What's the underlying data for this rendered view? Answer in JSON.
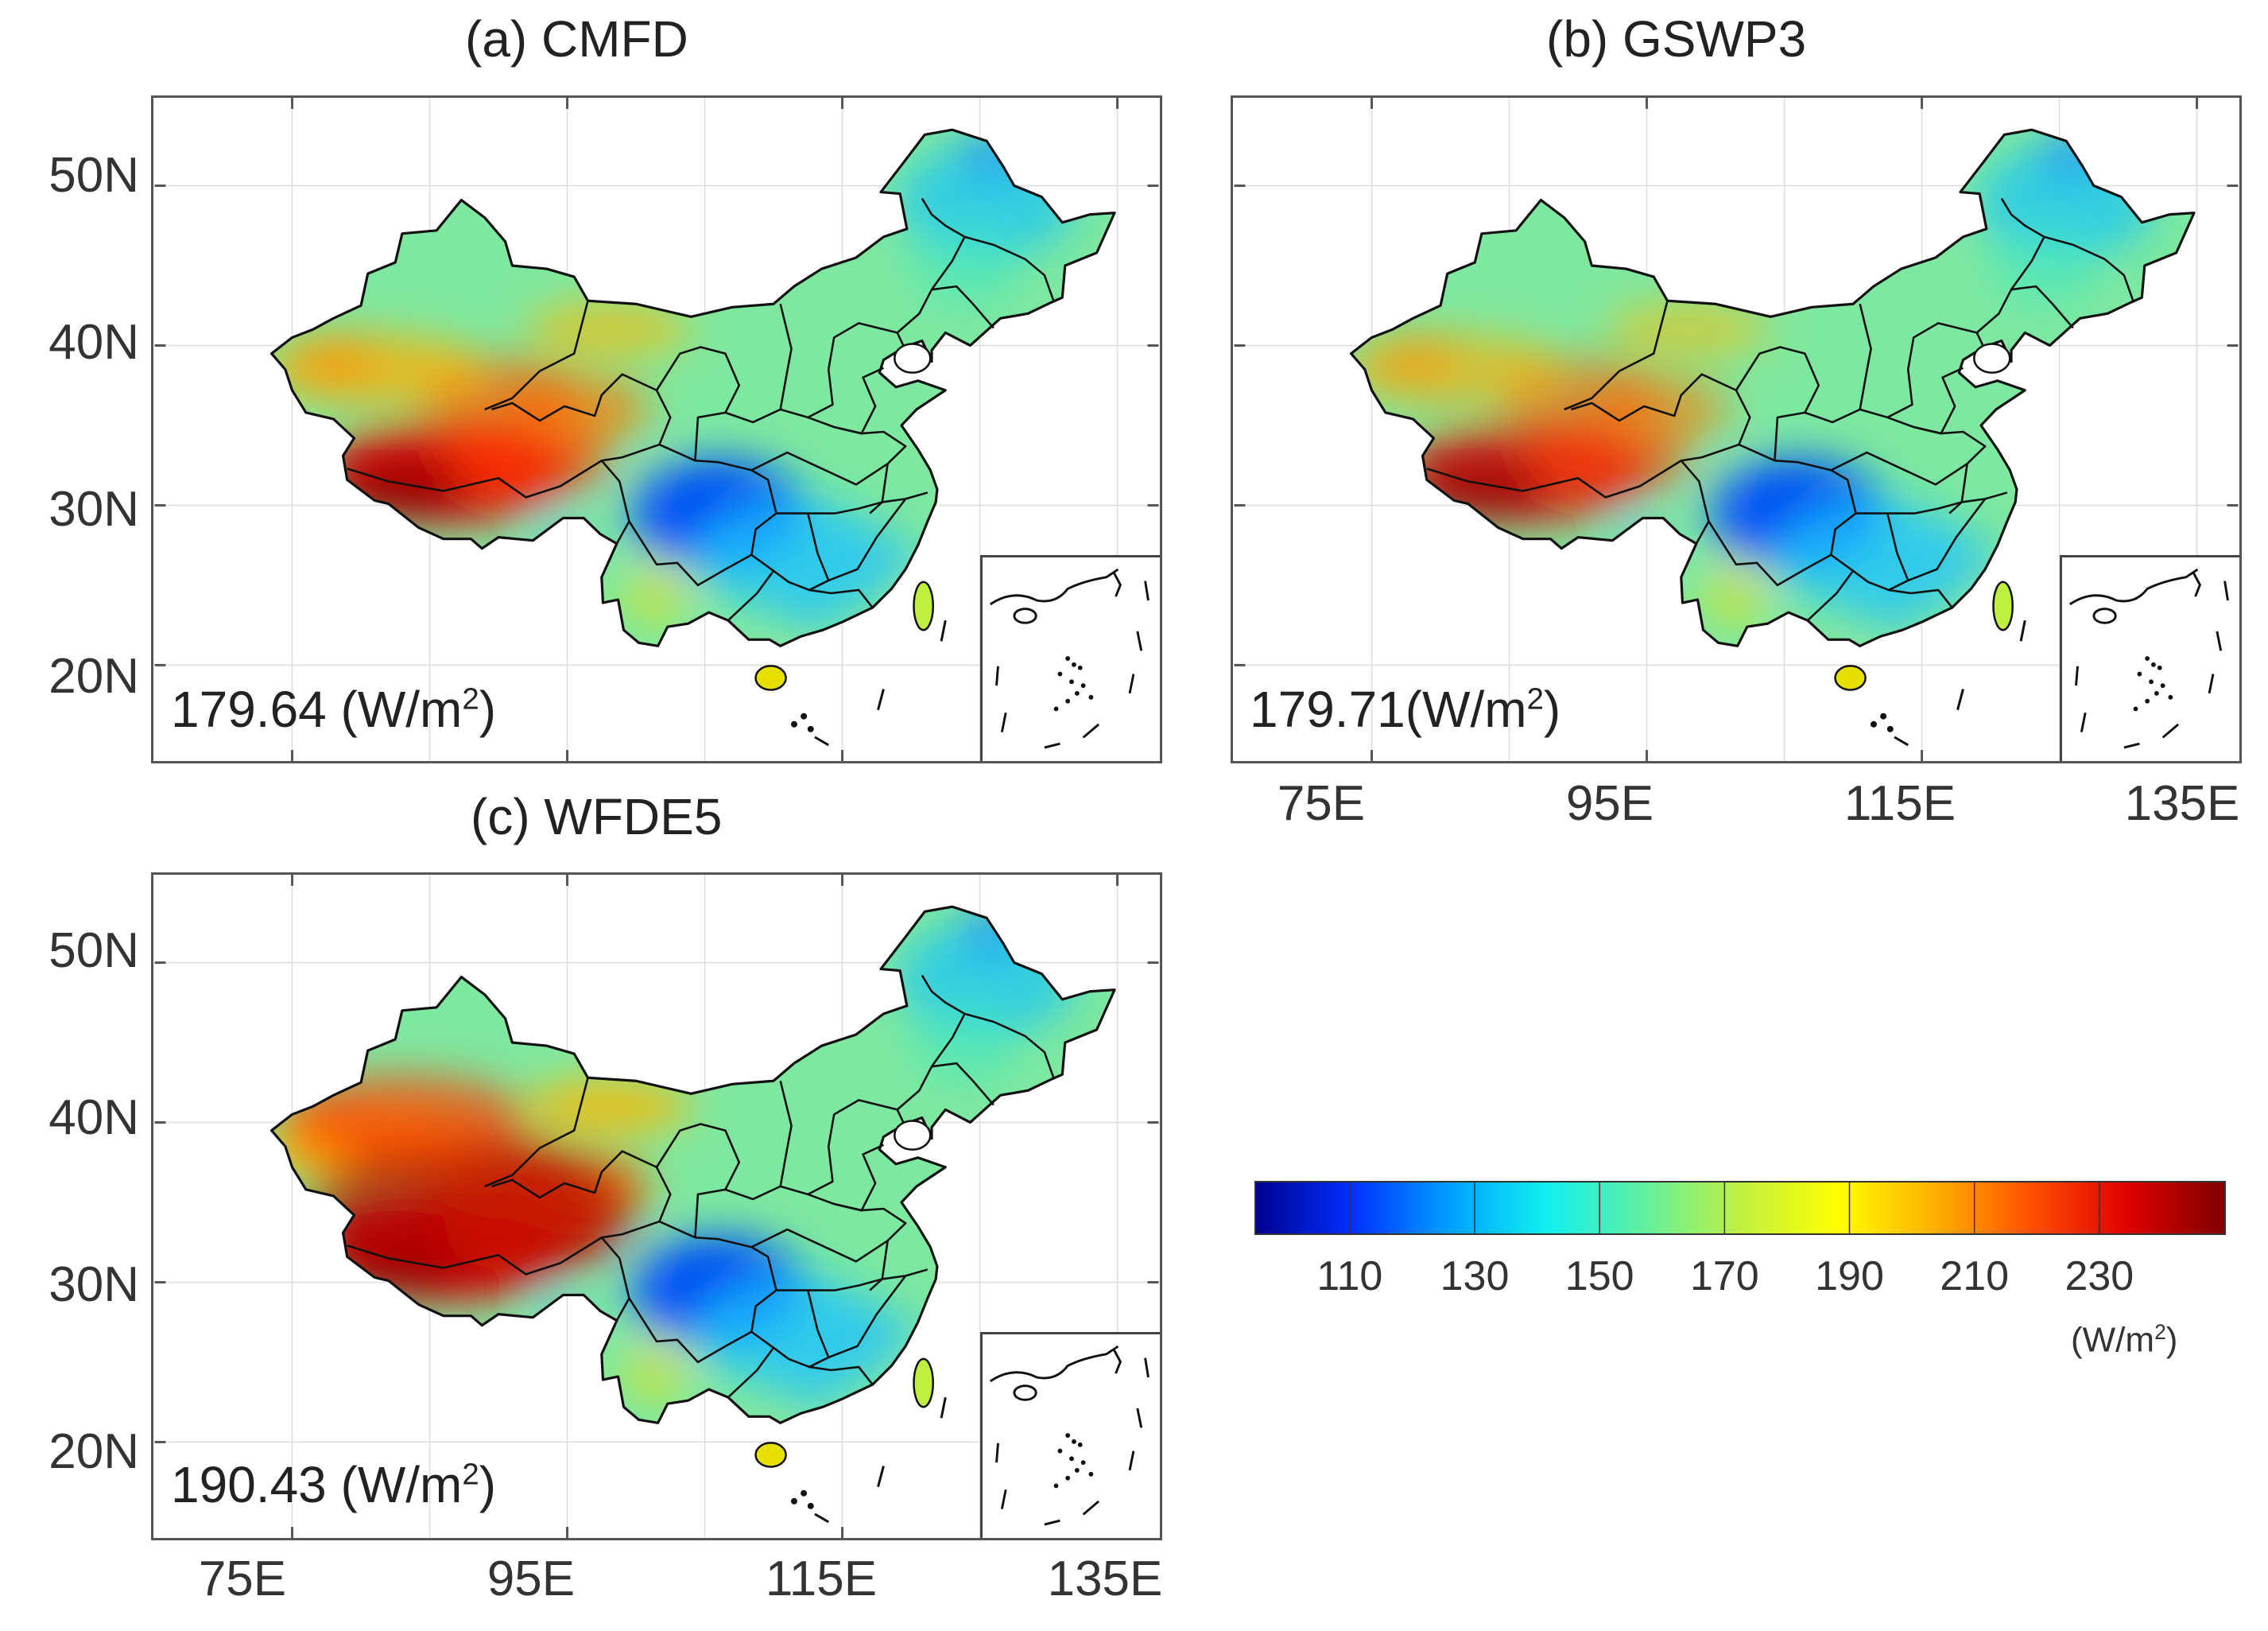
{
  "panels": [
    {
      "id": "a",
      "title": "(a) CMFD",
      "mean_value": "179.64",
      "mean_unit": "(W/m",
      "unit_sup": "2",
      "unit_close": ")",
      "hot_intensity": 1.0
    },
    {
      "id": "b",
      "title": "(b) GSWP3",
      "mean_value": "179.71",
      "mean_unit": "(W/m",
      "unit_sup": "2",
      "unit_close": ")",
      "hot_intensity": 0.85
    },
    {
      "id": "c",
      "title": "(c) WFDE5",
      "mean_value": "190.43",
      "mean_unit": "(W/m",
      "unit_sup": "2",
      "unit_close": ")",
      "hot_intensity": 1.25
    }
  ],
  "lat_ticks": [
    "50N",
    "40N",
    "30N",
    "20N"
  ],
  "lon_ticks": [
    "75E",
    "95E",
    "115E",
    "135E"
  ],
  "colorbar": {
    "min": 95,
    "max": 250,
    "ticks": [
      110,
      130,
      150,
      170,
      190,
      210,
      230
    ],
    "tick_labels": [
      "110",
      "130",
      "150",
      "170",
      "190",
      "210",
      "230"
    ],
    "unit_text": "(W/m",
    "unit_sup": "2",
    "unit_close": ")",
    "colors": [
      "#00008f",
      "#0030ff",
      "#00a0ff",
      "#10f0f0",
      "#60f0a0",
      "#c0f040",
      "#ffff00",
      "#ffb000",
      "#ff5000",
      "#e00000",
      "#800000"
    ]
  },
  "colors": {
    "border": "#111111",
    "frame": "#555555",
    "grid": "#dddddd"
  }
}
